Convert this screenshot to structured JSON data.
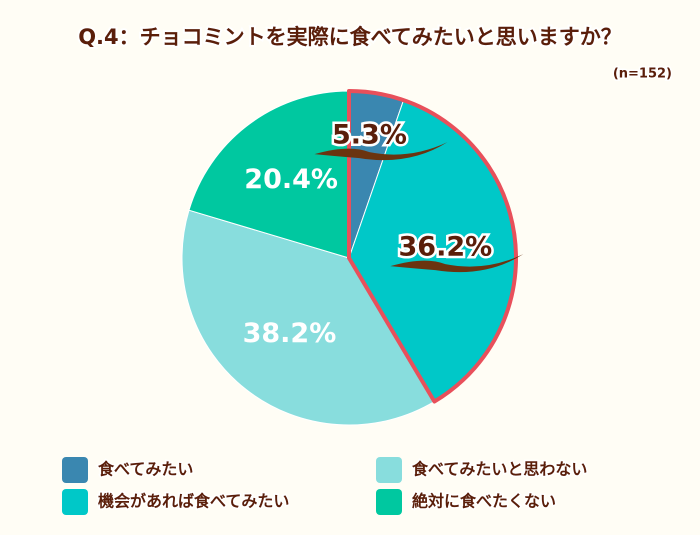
{
  "chart_data": {
    "type": "pie",
    "title": "Q.4：チョコミントを実際に食べてみたいと思いますか？",
    "subtitle": "(n=152)",
    "categories": [
      "食べてみたい",
      "機会があれば食べてみたい",
      "食べてみたいと思わない",
      "絶対に食べたくない"
    ],
    "values": [
      5.3,
      36.2,
      38.2,
      20.4
    ],
    "value_labels": [
      "5.3%",
      "36.2%",
      "38.2%",
      "20.4%"
    ],
    "colors": [
      "#3a87b0",
      "#00c8c8",
      "#88dddd",
      "#00c8a0"
    ]
  }
}
